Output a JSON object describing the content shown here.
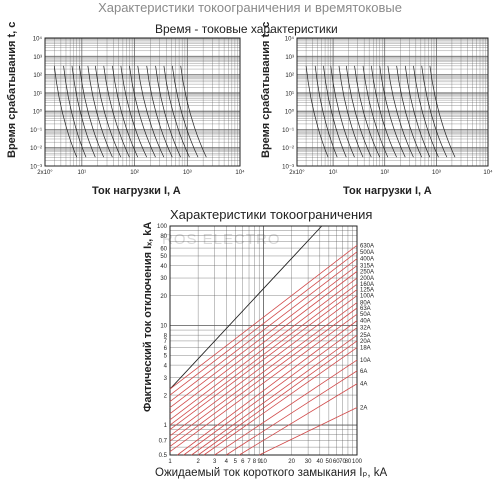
{
  "page": {
    "heading": "Характеристики токоограничения и времятоковые",
    "watermark": "ROS ELECTRO"
  },
  "colors": {
    "grid": "#555555",
    "curve_black": "#222222",
    "curve_red": "#d14a4a"
  },
  "chart_data": [
    {
      "type": "line",
      "title": "Время - токовые характеристики",
      "xlabel": "Ток нагрузки  I, A",
      "ylabel": "Время срабатывания  t, c",
      "xscale": "log",
      "yscale": "log",
      "xlim": [
        2,
        10000
      ],
      "ylim": [
        0.001,
        10000
      ],
      "x_ticks": [
        "2x10°",
        "10¹",
        "10²",
        "10³",
        "10⁴"
      ],
      "y_ticks": [
        "10⁴",
        "10³",
        "10²",
        "10¹",
        "10⁰",
        "10⁻¹",
        "10⁻²",
        "10⁻³"
      ],
      "grid": true,
      "series": [
        {
          "values": [
            [
              3,
              300
            ],
            [
              8,
              0.003
            ]
          ]
        },
        {
          "values": [
            [
              4.5,
              300
            ],
            [
              12,
              0.003
            ]
          ]
        },
        {
          "values": [
            [
              6.5,
              300
            ],
            [
              18,
              0.003
            ]
          ]
        },
        {
          "values": [
            [
              9,
              300
            ],
            [
              26,
              0.003
            ]
          ]
        },
        {
          "values": [
            [
              13,
              300
            ],
            [
              38,
              0.003
            ]
          ]
        },
        {
          "values": [
            [
              18,
              300
            ],
            [
              55,
              0.003
            ]
          ]
        },
        {
          "values": [
            [
              26,
              300
            ],
            [
              80,
              0.003
            ]
          ]
        },
        {
          "values": [
            [
              38,
              300
            ],
            [
              115,
              0.003
            ]
          ]
        },
        {
          "values": [
            [
              55,
              300
            ],
            [
              170,
              0.003
            ]
          ]
        },
        {
          "values": [
            [
              80,
              300
            ],
            [
              250,
              0.003
            ]
          ]
        },
        {
          "values": [
            [
              115,
              300
            ],
            [
              360,
              0.003
            ]
          ]
        },
        {
          "values": [
            [
              170,
              300
            ],
            [
              520,
              0.003
            ]
          ]
        },
        {
          "values": [
            [
              250,
              300
            ],
            [
              750,
              0.003
            ]
          ]
        },
        {
          "values": [
            [
              360,
              300
            ],
            [
              1100,
              0.003
            ]
          ]
        },
        {
          "values": [
            [
              520,
              300
            ],
            [
              1600,
              0.003
            ]
          ]
        },
        {
          "values": [
            [
              750,
              300
            ],
            [
              2300,
              0.003
            ]
          ]
        }
      ]
    },
    {
      "type": "line",
      "title": "",
      "xlabel": "Ток нагрузки  I, A",
      "ylabel": "Время срабатывания  t, c",
      "xscale": "log",
      "yscale": "log",
      "xlim": [
        2,
        10000
      ],
      "ylim": [
        0.001,
        10000
      ],
      "x_ticks": [
        "2x10°",
        "10¹",
        "10²",
        "10³",
        "10⁴"
      ],
      "y_ticks": [
        "10⁴",
        "10³",
        "10²",
        "10¹",
        "10⁰",
        "10⁻¹",
        "10⁻²",
        "10⁻³"
      ],
      "grid": true,
      "series": [
        {
          "values": [
            [
              3,
              300
            ],
            [
              8,
              0.003
            ]
          ]
        },
        {
          "values": [
            [
              4.5,
              300
            ],
            [
              12,
              0.003
            ]
          ]
        },
        {
          "values": [
            [
              6.5,
              300
            ],
            [
              18,
              0.003
            ]
          ]
        },
        {
          "values": [
            [
              9,
              300
            ],
            [
              26,
              0.003
            ]
          ]
        },
        {
          "values": [
            [
              13,
              300
            ],
            [
              38,
              0.003
            ]
          ]
        },
        {
          "values": [
            [
              18,
              300
            ],
            [
              55,
              0.003
            ]
          ]
        },
        {
          "values": [
            [
              26,
              300
            ],
            [
              80,
              0.003
            ]
          ]
        },
        {
          "values": [
            [
              38,
              300
            ],
            [
              115,
              0.003
            ]
          ]
        },
        {
          "values": [
            [
              55,
              300
            ],
            [
              170,
              0.003
            ]
          ]
        },
        {
          "values": [
            [
              80,
              300
            ],
            [
              250,
              0.003
            ]
          ]
        },
        {
          "values": [
            [
              115,
              300
            ],
            [
              360,
              0.003
            ]
          ]
        },
        {
          "values": [
            [
              170,
              300
            ],
            [
              520,
              0.003
            ]
          ]
        },
        {
          "values": [
            [
              250,
              300
            ],
            [
              750,
              0.003
            ]
          ]
        },
        {
          "values": [
            [
              360,
              300
            ],
            [
              1100,
              0.003
            ]
          ]
        },
        {
          "values": [
            [
              520,
              300
            ],
            [
              1600,
              0.003
            ]
          ]
        },
        {
          "values": [
            [
              750,
              300
            ],
            [
              2300,
              0.003
            ]
          ]
        }
      ]
    },
    {
      "type": "line",
      "title": "Характеристики токоограничения",
      "xlabel": "Ожидаемый ток короткого замыкания  Iₚ, kA",
      "ylabel": "Фактический ток отключения  Iₓ, kA",
      "xscale": "log",
      "yscale": "log",
      "xlim": [
        1,
        100
      ],
      "ylim": [
        0.5,
        100
      ],
      "x_ticks": [
        "1",
        "2",
        "3",
        "4",
        "5",
        "6",
        "7",
        "8",
        "9",
        "10",
        "20",
        "30",
        "40",
        "50",
        "60",
        "70",
        "80",
        "100"
      ],
      "y_ticks": [
        "100",
        "80",
        "60",
        "50",
        "40",
        "30",
        "20",
        "10",
        "8",
        "7",
        "6",
        "5",
        "4",
        "3",
        "2",
        "1",
        "0.7",
        "0.5"
      ],
      "grid": true,
      "series": [
        {
          "name": "630A",
          "values": [
            [
              1,
              2.3
            ],
            [
              100,
              64
            ]
          ]
        },
        {
          "name": "500A",
          "values": [
            [
              1,
              2.0
            ],
            [
              100,
              55
            ]
          ]
        },
        {
          "name": "400A",
          "values": [
            [
              1,
              1.72
            ],
            [
              100,
              47
            ]
          ]
        },
        {
          "name": "315A",
          "values": [
            [
              1,
              1.5
            ],
            [
              100,
              40
            ]
          ]
        },
        {
          "name": "250A",
          "values": [
            [
              1,
              1.3
            ],
            [
              100,
              35
            ]
          ]
        },
        {
          "name": "200A",
          "values": [
            [
              1,
              1.13
            ],
            [
              100,
              30
            ]
          ]
        },
        {
          "name": "160A",
          "values": [
            [
              1,
              1.0
            ],
            [
              100,
              26
            ]
          ]
        },
        {
          "name": "125A",
          "values": [
            [
              1,
              0.9
            ],
            [
              100,
              23
            ]
          ]
        },
        {
          "name": "100A",
          "values": [
            [
              1,
              0.78
            ],
            [
              100,
              20
            ]
          ]
        },
        {
          "name": "80A",
          "values": [
            [
              1,
              0.69
            ],
            [
              100,
              17
            ]
          ]
        },
        {
          "name": "63A",
          "values": [
            [
              1,
              0.61
            ],
            [
              100,
              15
            ]
          ]
        },
        {
          "name": "50A",
          "values": [
            [
              1,
              0.54
            ],
            [
              100,
              13
            ]
          ]
        },
        {
          "name": "40A",
          "values": [
            [
              1.2,
              0.5
            ],
            [
              100,
              11.2
            ]
          ]
        },
        {
          "name": "32A",
          "values": [
            [
              1.4,
              0.5
            ],
            [
              100,
              9.5
            ]
          ]
        },
        {
          "name": "25A",
          "values": [
            [
              1.7,
              0.5
            ],
            [
              100,
              8
            ]
          ]
        },
        {
          "name": "20A",
          "values": [
            [
              2.0,
              0.5
            ],
            [
              100,
              7
            ]
          ]
        },
        {
          "name": "18A",
          "values": [
            [
              2.3,
              0.5
            ],
            [
              100,
              6
            ]
          ]
        },
        {
          "name": "10A",
          "values": [
            [
              3.0,
              0.5
            ],
            [
              100,
              4.5
            ]
          ]
        },
        {
          "name": "6A",
          "values": [
            [
              4.0,
              0.5
            ],
            [
              100,
              3.5
            ]
          ]
        },
        {
          "name": "4A",
          "values": [
            [
              5.5,
              0.5
            ],
            [
              100,
              2.6
            ]
          ]
        },
        {
          "name": "2A",
          "values": [
            [
              9.0,
              0.5
            ],
            [
              100,
              1.5
            ]
          ]
        }
      ]
    }
  ]
}
